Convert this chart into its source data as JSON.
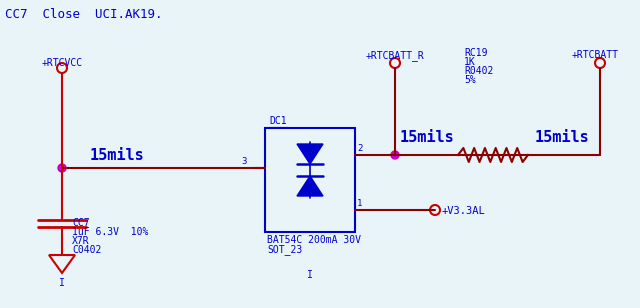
{
  "bg_color": "#e8f4f8",
  "wire_color_red": "#cc0000",
  "wire_color_dark": "#8b0000",
  "wire_color_blue": "#0000cc",
  "wire_color_magenta": "#cc00cc",
  "text_color_blue": "#0000cc",
  "text_color_red": "#cc0000",
  "title_text": "CC7  Close  UCI.AK19.",
  "label_15mils_1": "15mils",
  "label_15mils_2": "15mils",
  "label_15mils_3": "15mils",
  "net_rtcvcc": "+RTCVCC",
  "net_rtcbatt_r": "+RTCBATT_R",
  "net_rtcbatt": "+RTCBATT",
  "net_v33al": "+V3.3AL",
  "comp_dc1": "DC1",
  "comp_cc7_line1": "CC7",
  "comp_cc7_line2": "1uF 6.3V  10%",
  "comp_cc7_line3": "X7R",
  "comp_cc7_line4": "C0402",
  "comp_bat_line1": "BAT54C 200mA 30V",
  "comp_bat_line2": "SOT_23",
  "comp_rc19_line1": "RC19",
  "comp_rc19_line2": "1K",
  "comp_rc19_line3": "R0402",
  "comp_rc19_line4": "5%",
  "pin2_label": "2",
  "pin3_label": "3",
  "pin1_label": "1",
  "i_marker": "I"
}
